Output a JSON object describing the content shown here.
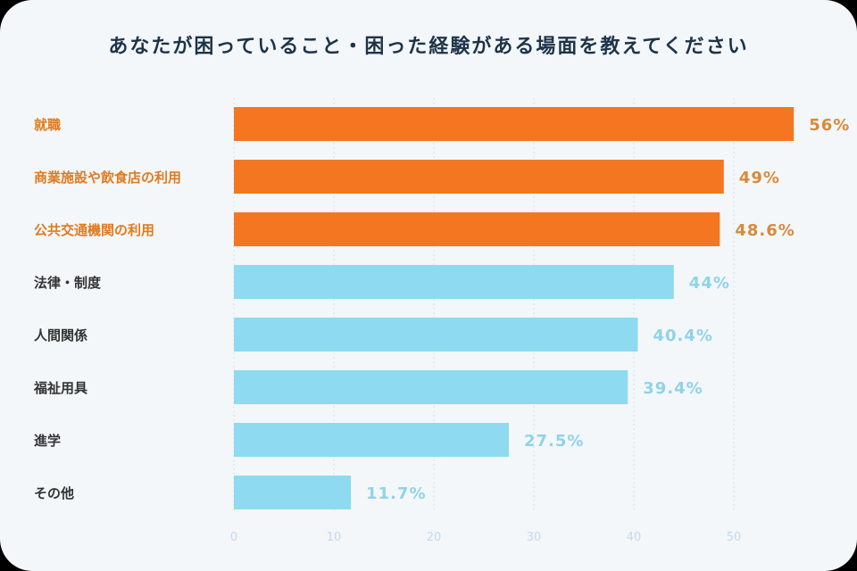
{
  "chart_data": {
    "type": "bar",
    "orientation": "horizontal",
    "title": "あなたが困っていること・困った経験がある場面を教えてください",
    "categories": [
      "就職",
      "商業施設や飲食店の利用",
      "公共交通機関の利用",
      "法律・制度",
      "人間関係",
      "福祉用具",
      "進学",
      "その他"
    ],
    "values": [
      56,
      49,
      48.6,
      44,
      40.4,
      39.4,
      27.5,
      11.7
    ],
    "value_labels": [
      "56%",
      "49%",
      "48.6%",
      "44%",
      "40.4%",
      "39.4%",
      "27.5%",
      "11.7%"
    ],
    "highlighted": [
      true,
      true,
      true,
      false,
      false,
      false,
      false,
      false
    ],
    "x_ticks": [
      0,
      10,
      20,
      30,
      40,
      50
    ],
    "xlim": [
      0,
      55
    ],
    "grid": true,
    "colors": {
      "highlight_bar": "#f47620",
      "highlight_text": "#e07a1f",
      "normal_bar": "#8edaf0",
      "normal_text": "#333333",
      "value_normal": "#8fd3ea",
      "value_highlight": "#d98a3a",
      "grid": "#d6e0ea",
      "title": "#1d3348"
    }
  }
}
